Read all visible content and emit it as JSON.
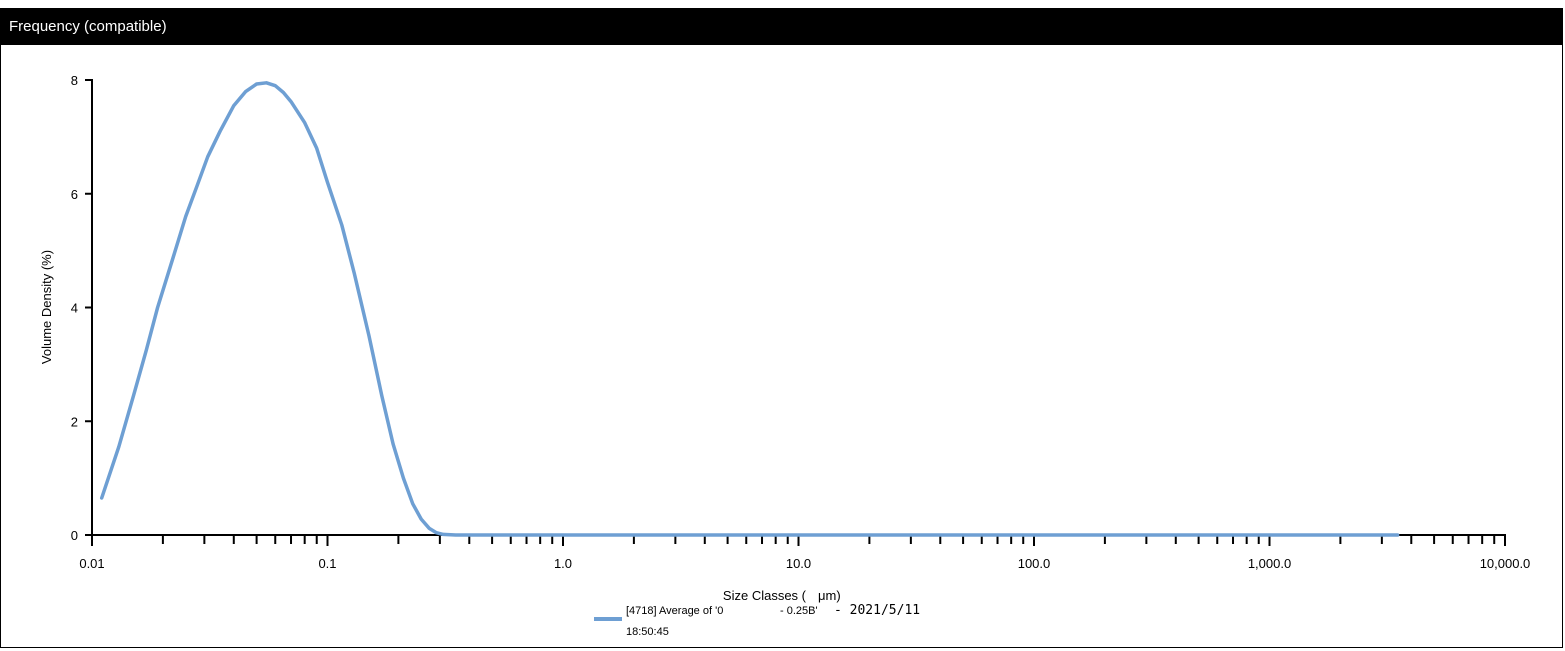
{
  "panel": {
    "title": "Frequency (compatible)"
  },
  "chart_data": {
    "type": "line",
    "xscale": "log",
    "xlim": [
      0.01,
      10000
    ],
    "ylim": [
      0,
      8
    ],
    "xlabel_main": "Size Classes (",
    "xlabel_unit": "μm)",
    "ylabel": "Volume Density (%)",
    "y_ticks": [
      "0",
      "2",
      "4",
      "6",
      "8"
    ],
    "x_ticks": [
      {
        "value": 0.01,
        "label": "0.01"
      },
      {
        "value": 0.1,
        "label": "0.1"
      },
      {
        "value": 1,
        "label": "1.0"
      },
      {
        "value": 10,
        "label": "10.0"
      },
      {
        "value": 100,
        "label": "100.0"
      },
      {
        "value": 1000,
        "label": "1,000.0"
      },
      {
        "value": 10000,
        "label": "10,000.0"
      }
    ],
    "series": [
      {
        "color": "#6e9fd3",
        "points": [
          [
            0.011,
            0.65
          ],
          [
            0.013,
            1.55
          ],
          [
            0.015,
            2.45
          ],
          [
            0.017,
            3.25
          ],
          [
            0.019,
            4.0
          ],
          [
            0.022,
            4.85
          ],
          [
            0.025,
            5.6
          ],
          [
            0.028,
            6.15
          ],
          [
            0.031,
            6.65
          ],
          [
            0.035,
            7.1
          ],
          [
            0.04,
            7.55
          ],
          [
            0.045,
            7.8
          ],
          [
            0.05,
            7.93
          ],
          [
            0.055,
            7.95
          ],
          [
            0.06,
            7.9
          ],
          [
            0.065,
            7.78
          ],
          [
            0.07,
            7.62
          ],
          [
            0.08,
            7.25
          ],
          [
            0.09,
            6.8
          ],
          [
            0.1,
            6.2
          ],
          [
            0.115,
            5.45
          ],
          [
            0.13,
            4.6
          ],
          [
            0.15,
            3.5
          ],
          [
            0.17,
            2.45
          ],
          [
            0.19,
            1.6
          ],
          [
            0.21,
            1.0
          ],
          [
            0.23,
            0.55
          ],
          [
            0.25,
            0.28
          ],
          [
            0.27,
            0.12
          ],
          [
            0.29,
            0.04
          ],
          [
            0.31,
            0.01
          ],
          [
            0.35,
            0.0
          ],
          [
            1,
            0.0
          ],
          [
            10,
            0.0
          ],
          [
            100,
            0.0
          ],
          [
            1000,
            0.0
          ],
          [
            3500,
            0.0
          ]
        ]
      }
    ],
    "legend": {
      "line1_part1": "[4718] Average of '0",
      "line1_part2": "- 0.25B'",
      "line1_date": "- 2021/5/11",
      "line2": "18:50:45"
    }
  }
}
